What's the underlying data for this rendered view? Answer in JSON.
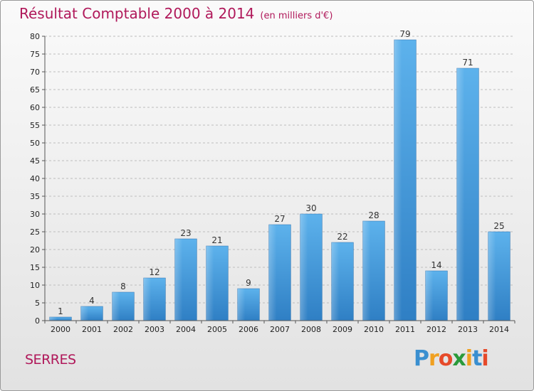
{
  "chart_data": {
    "type": "bar",
    "title": "Résultat Comptable 2000 à 2014",
    "subtitle": "(en milliers d'€)",
    "categories": [
      "2000",
      "2001",
      "2002",
      "2003",
      "2004",
      "2005",
      "2006",
      "2007",
      "2008",
      "2009",
      "2010",
      "2011",
      "2012",
      "2013",
      "2014"
    ],
    "values": [
      1,
      4,
      8,
      12,
      23,
      21,
      9,
      27,
      30,
      22,
      28,
      79,
      14,
      71,
      25
    ],
    "ylim": [
      0,
      80
    ],
    "yticks": [
      0,
      5,
      10,
      15,
      20,
      25,
      30,
      35,
      40,
      45,
      50,
      55,
      60,
      65,
      70,
      75,
      80
    ],
    "xlabel": "",
    "ylabel": "",
    "grid": true,
    "bar_color": "#3a8fd6"
  },
  "city": "SERRES",
  "logo": {
    "letters": [
      "P",
      "r",
      "o",
      "x",
      "i",
      "t",
      "i"
    ]
  }
}
